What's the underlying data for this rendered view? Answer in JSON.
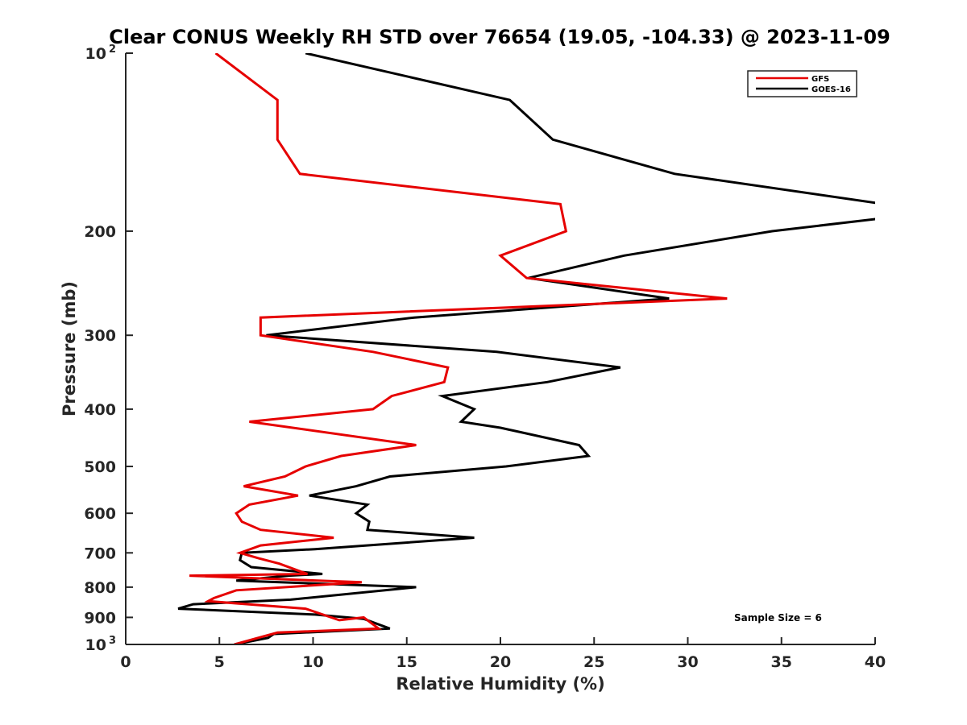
{
  "chart_data": {
    "type": "line",
    "title": "Clear CONUS Weekly RH STD over 76654 (19.05, -104.33) @ 2023-11-09",
    "xlabel": "Relative Humidity (%)",
    "ylabel": "Pressure (mb)",
    "xlim": [
      0,
      40
    ],
    "ylim": [
      100,
      1000
    ],
    "yscale": "log",
    "y_reversed": true,
    "grid": false,
    "x_ticks": [
      0,
      5,
      10,
      15,
      20,
      25,
      30,
      35,
      40
    ],
    "x_tick_labels": [
      "0",
      "5",
      "10",
      "15",
      "20",
      "25",
      "30",
      "35",
      "40"
    ],
    "y_ticks": [
      100,
      200,
      300,
      400,
      500,
      600,
      700,
      800,
      900,
      1000
    ],
    "y_tick_labels": [
      {
        "base": "10",
        "sup": "2"
      },
      {
        "base": "200"
      },
      {
        "base": "300"
      },
      {
        "base": "400"
      },
      {
        "base": "500"
      },
      {
        "base": "600"
      },
      {
        "base": "700"
      },
      {
        "base": "800"
      },
      {
        "base": "900"
      },
      {
        "base": "10",
        "sup": "3"
      }
    ],
    "legend": {
      "position": "top-right",
      "entries": [
        {
          "name": "GFS",
          "color": "#e60000"
        },
        {
          "name": "GOES-16",
          "color": "#000000"
        }
      ]
    },
    "annotation": "Sample Size = 6",
    "series": [
      {
        "name": "GFS",
        "color": "#e60000",
        "points": [
          [
            4.8,
            100
          ],
          [
            8.1,
            120
          ],
          [
            8.1,
            140
          ],
          [
            9.3,
            160
          ],
          [
            23.2,
            180
          ],
          [
            23.5,
            200
          ],
          [
            20.0,
            220
          ],
          [
            21.4,
            240
          ],
          [
            32.1,
            260
          ],
          [
            7.2,
            280
          ],
          [
            7.2,
            300
          ],
          [
            13.2,
            320
          ],
          [
            17.2,
            340
          ],
          [
            17.0,
            360
          ],
          [
            14.2,
            380
          ],
          [
            13.2,
            400
          ],
          [
            6.6,
            420
          ],
          [
            15.5,
            460
          ],
          [
            11.5,
            480
          ],
          [
            9.6,
            500
          ],
          [
            8.5,
            520
          ],
          [
            6.3,
            540
          ],
          [
            9.2,
            560
          ],
          [
            6.6,
            580
          ],
          [
            5.9,
            600
          ],
          [
            6.2,
            620
          ],
          [
            7.2,
            640
          ],
          [
            11.1,
            660
          ],
          [
            7.2,
            680
          ],
          [
            6.1,
            700
          ],
          [
            7.1,
            715
          ],
          [
            8.2,
            730
          ],
          [
            9.2,
            750
          ],
          [
            9.7,
            760
          ],
          [
            3.4,
            765
          ],
          [
            12.6,
            785
          ],
          [
            5.9,
            810
          ],
          [
            4.7,
            835
          ],
          [
            4.4,
            845
          ],
          [
            9.6,
            870
          ],
          [
            11.4,
            910
          ],
          [
            12.7,
            900
          ],
          [
            13.5,
            940
          ],
          [
            8.1,
            955
          ],
          [
            7.3,
            970
          ],
          [
            5.8,
            1000
          ]
        ]
      },
      {
        "name": "GOES-16",
        "color": "#000000",
        "points": [
          [
            9.6,
            100
          ],
          [
            20.5,
            120
          ],
          [
            22.8,
            140
          ],
          [
            29.3,
            160
          ],
          [
            40.5,
            180
          ],
          [
            40.5,
            190
          ],
          [
            34.5,
            200
          ],
          [
            26.6,
            220
          ],
          [
            21.5,
            240
          ],
          [
            29.0,
            260
          ],
          [
            15.4,
            280
          ],
          [
            7.5,
            300
          ],
          [
            19.8,
            320
          ],
          [
            26.4,
            340
          ],
          [
            22.5,
            360
          ],
          [
            16.9,
            380
          ],
          [
            18.6,
            400
          ],
          [
            17.9,
            420
          ],
          [
            20.0,
            430
          ],
          [
            24.2,
            460
          ],
          [
            24.7,
            480
          ],
          [
            20.3,
            500
          ],
          [
            14.1,
            520
          ],
          [
            12.3,
            540
          ],
          [
            9.8,
            560
          ],
          [
            12.9,
            580
          ],
          [
            12.3,
            600
          ],
          [
            13.0,
            620
          ],
          [
            12.9,
            640
          ],
          [
            18.6,
            660
          ],
          [
            10.1,
            690
          ],
          [
            6.2,
            700
          ],
          [
            6.1,
            720
          ],
          [
            6.7,
            740
          ],
          [
            10.5,
            760
          ],
          [
            8.7,
            765
          ],
          [
            5.9,
            780
          ],
          [
            15.5,
            800
          ],
          [
            8.8,
            840
          ],
          [
            3.6,
            855
          ],
          [
            2.8,
            870
          ],
          [
            10.1,
            890
          ],
          [
            12.7,
            905
          ],
          [
            14.1,
            940
          ],
          [
            7.9,
            960
          ],
          [
            7.6,
            975
          ],
          [
            5.8,
            1000
          ]
        ]
      }
    ]
  }
}
